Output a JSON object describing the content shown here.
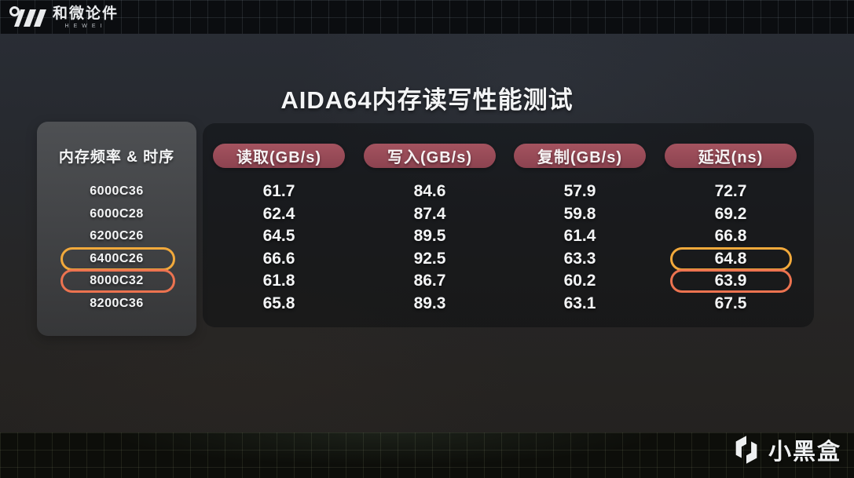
{
  "brand": {
    "name": "和微论件",
    "subname": "HEWEI"
  },
  "title": "AIDA64内存读写性能测试",
  "watermark": {
    "label": "小黑盒"
  },
  "colors": {
    "header_pill": "#9a4b58",
    "highlight_gold": "#f2a93b",
    "highlight_orange": "#ec7350",
    "panel_gray": "#47494c",
    "background": "#26272c"
  },
  "chart_data": {
    "type": "table",
    "title": "AIDA64内存读写性能测试",
    "row_header": "内存频率 & 时序",
    "columns": [
      "读取(GB/s)",
      "写入(GB/s)",
      "复制(GB/s)",
      "延迟(ns)"
    ],
    "rows": [
      {
        "label": "6000C36",
        "values": [
          "61.7",
          "84.6",
          "57.9",
          "72.7"
        ],
        "highlight": null
      },
      {
        "label": "6000C28",
        "values": [
          "62.4",
          "87.4",
          "59.8",
          "69.2"
        ],
        "highlight": null
      },
      {
        "label": "6200C26",
        "values": [
          "64.5",
          "89.5",
          "61.4",
          "66.8"
        ],
        "highlight": null
      },
      {
        "label": "6400C26",
        "values": [
          "66.6",
          "92.5",
          "63.3",
          "64.8"
        ],
        "highlight": "gold"
      },
      {
        "label": "8000C32",
        "values": [
          "61.8",
          "86.7",
          "60.2",
          "63.9"
        ],
        "highlight": "orange"
      },
      {
        "label": "8200C36",
        "values": [
          "65.8",
          "89.3",
          "63.1",
          "67.5"
        ],
        "highlight": null
      }
    ],
    "notes": "highlighted rows outline the label and latency cells",
    "legend_position": "none",
    "grid": false
  }
}
